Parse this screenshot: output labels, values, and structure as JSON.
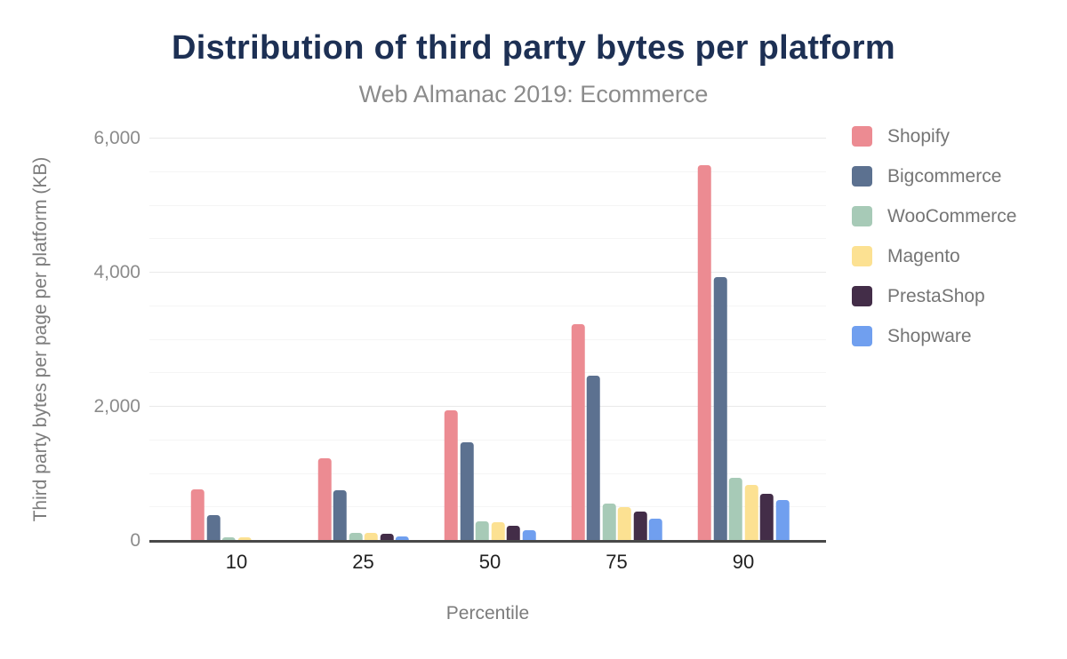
{
  "chart_data": {
    "type": "bar",
    "title": "Distribution of third party bytes per platform",
    "subtitle": "Web Almanac 2019: Ecommerce",
    "xlabel": "Percentile",
    "ylabel": "Third party bytes per page per platform (KB)",
    "categories": [
      "10",
      "25",
      "50",
      "75",
      "90"
    ],
    "series": [
      {
        "name": "Shopify",
        "color": "#ec8b92",
        "values": [
          770,
          1230,
          1950,
          3230,
          5600
        ]
      },
      {
        "name": "Bigcommerce",
        "color": "#5c7190",
        "values": [
          385,
          760,
          1470,
          2460,
          3930
        ]
      },
      {
        "name": "WooCommerce",
        "color": "#a7cab7",
        "values": [
          55,
          120,
          285,
          560,
          935
        ]
      },
      {
        "name": "Magento",
        "color": "#fce192",
        "values": [
          50,
          115,
          275,
          505,
          840
        ]
      },
      {
        "name": "PrestaShop",
        "color": "#432d48",
        "values": [
          0,
          100,
          220,
          435,
          700
        ]
      },
      {
        "name": "Shopware",
        "color": "#709fef",
        "values": [
          0,
          70,
          165,
          325,
          615
        ]
      }
    ],
    "ylim": [
      0,
      6000
    ],
    "yticks": [
      0,
      2000,
      4000,
      6000
    ],
    "ytick_labels": [
      "0",
      "2,000",
      "4,000",
      "6,000"
    ],
    "grid": {
      "minor_step": 500,
      "major_step": 2000,
      "visible": true
    },
    "legend_position": "right",
    "colors": {
      "title": "#1d3054",
      "subtitle": "#8b8b8b",
      "axis_text": "#8b8b8b",
      "category_text": "#212121",
      "axis_line": "#484848"
    }
  }
}
